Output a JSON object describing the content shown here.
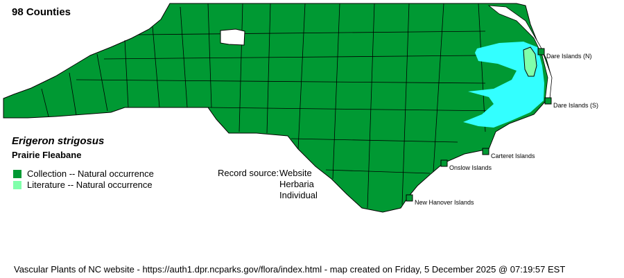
{
  "county_count": "98 Counties",
  "species": {
    "scientific_name": "Erigeron strigosus",
    "common_name": "Prairie Fleabane"
  },
  "legend": [
    {
      "label": "Collection -- Natural occurrence",
      "color": "#009933"
    },
    {
      "label": "Literature -- Natural occurrence",
      "color": "#80ffaa"
    }
  ],
  "record_source": {
    "label": "Record source:",
    "values": [
      "Website",
      "Herbaria",
      "Individual"
    ]
  },
  "islands": [
    {
      "label": "Dare Islands (N)",
      "status": "Collection"
    },
    {
      "label": "Dare Islands (S)",
      "status": "Collection"
    },
    {
      "label": "Carteret Islands",
      "status": "Collection"
    },
    {
      "label": "Onslow Islands",
      "status": "Collection"
    },
    {
      "label": "New Hanover Islands",
      "status": "Collection"
    }
  ],
  "colors": {
    "collection": "#009933",
    "literature": "#80ffaa",
    "water": "#33ffff",
    "no_record": "#ffffff"
  },
  "footer": "Vascular Plants of NC website - https://auth1.dpr.ncparks.gov/flora/index.html - map created on Friday, 5 December 2025 @ 07:19:57 EST"
}
